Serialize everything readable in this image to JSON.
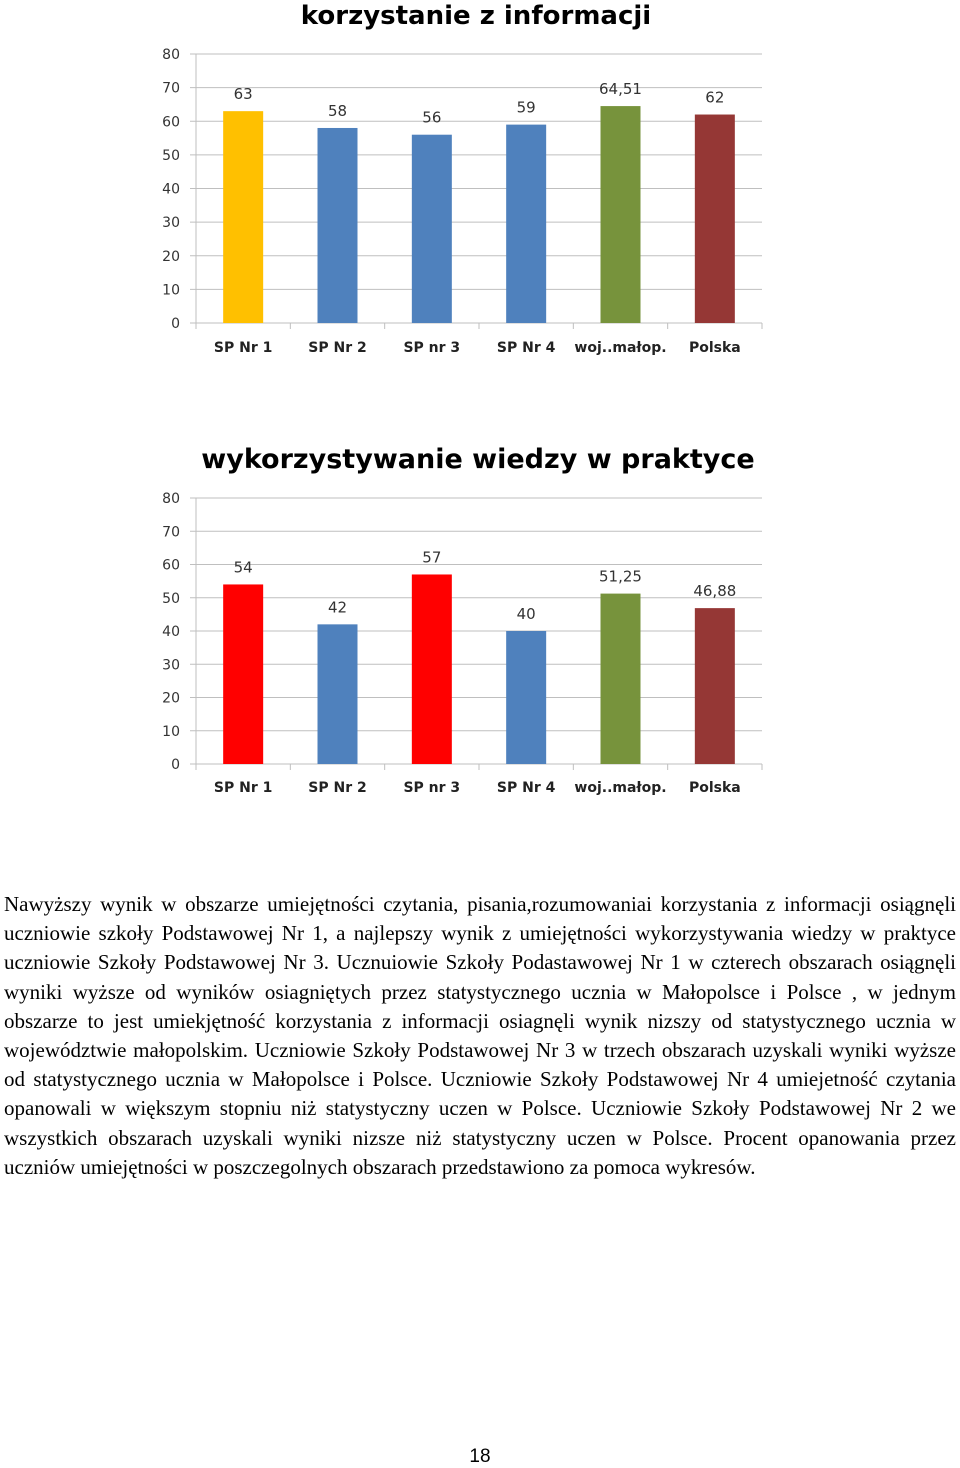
{
  "chart_data": [
    {
      "type": "bar",
      "title": "korzystanie z informacji",
      "xlabel": "",
      "ylabel": "",
      "categories": [
        "SP Nr 1",
        "SP Nr 2",
        "SP nr 3",
        "SP Nr 4",
        "woj..małop.",
        "Polska"
      ],
      "values": [
        63,
        58,
        56,
        59,
        64.51,
        62
      ],
      "value_labels": [
        "63",
        "58",
        "56",
        "59",
        "64,51",
        "62"
      ],
      "colors": [
        "#FFC000",
        "#4F81BD",
        "#4F81BD",
        "#4F81BD",
        "#77933C",
        "#953735"
      ],
      "ylim": [
        0,
        80
      ],
      "yticks": [
        0,
        10,
        20,
        30,
        40,
        50,
        60,
        70,
        80
      ],
      "grid": true,
      "legend": "none"
    },
    {
      "type": "bar",
      "title": "wykorzystywanie wiedzy w praktyce",
      "xlabel": "",
      "ylabel": "",
      "categories": [
        "SP Nr 1",
        "SP Nr 2",
        "SP nr 3",
        "SP Nr 4",
        "woj..małop.",
        "Polska"
      ],
      "values": [
        54,
        42,
        57,
        40,
        51.25,
        46.88
      ],
      "value_labels": [
        "54",
        "42",
        "57",
        "40",
        "51,25",
        "46,88"
      ],
      "colors": [
        "#FF0000",
        "#4F81BD",
        "#FF0000",
        "#4F81BD",
        "#77933C",
        "#953735"
      ],
      "ylim": [
        0,
        80
      ],
      "yticks": [
        0,
        10,
        20,
        30,
        40,
        50,
        60,
        70,
        80
      ],
      "grid": true,
      "legend": "none"
    }
  ],
  "paragraph": "Nawyższy wynik w obszarze umiejętności czytania, pisania,rozumowaniai korzystania z informacji osiągnęli uczniowie szkoły Podstawowej Nr 1, a najlepszy wynik z umiejętności wykorzystywania wiedzy w praktyce uczniowie Szkoły Podstawowej Nr 3. Ucznuiowie Szkoły Podastawowej Nr 1 w czterech obszarach osiągnęli wyniki wyższe od wyników osiagniętych przez statystycznego ucznia w Małopolsce i Polsce , w jednym obszarze to jest umiekjętność korzystania z informacji osiagnęli wynik nizszy od statystycznego ucznia w województwie małopolskim. Uczniowie Szkoły Podstawowej Nr 3 w trzech obszarach uzyskali wyniki wyższe od statystycznego ucznia w Małopolsce i Polsce. Uczniowie Szkoły Podstawowej Nr 4 umiejetność czytania opanowali w większym stopniu niż statystyczny uczen w Polsce. Uczniowie Szkoły Podstawowej Nr 2 we wszystkich obszarach uzyskali wyniki nizsze niż statystyczny uczen w Polsce. Procent opanowania przez uczniów umiejętności w poszczegolnych obszarach przedstawiono za pomoca wykresów.",
  "page_number": "18"
}
